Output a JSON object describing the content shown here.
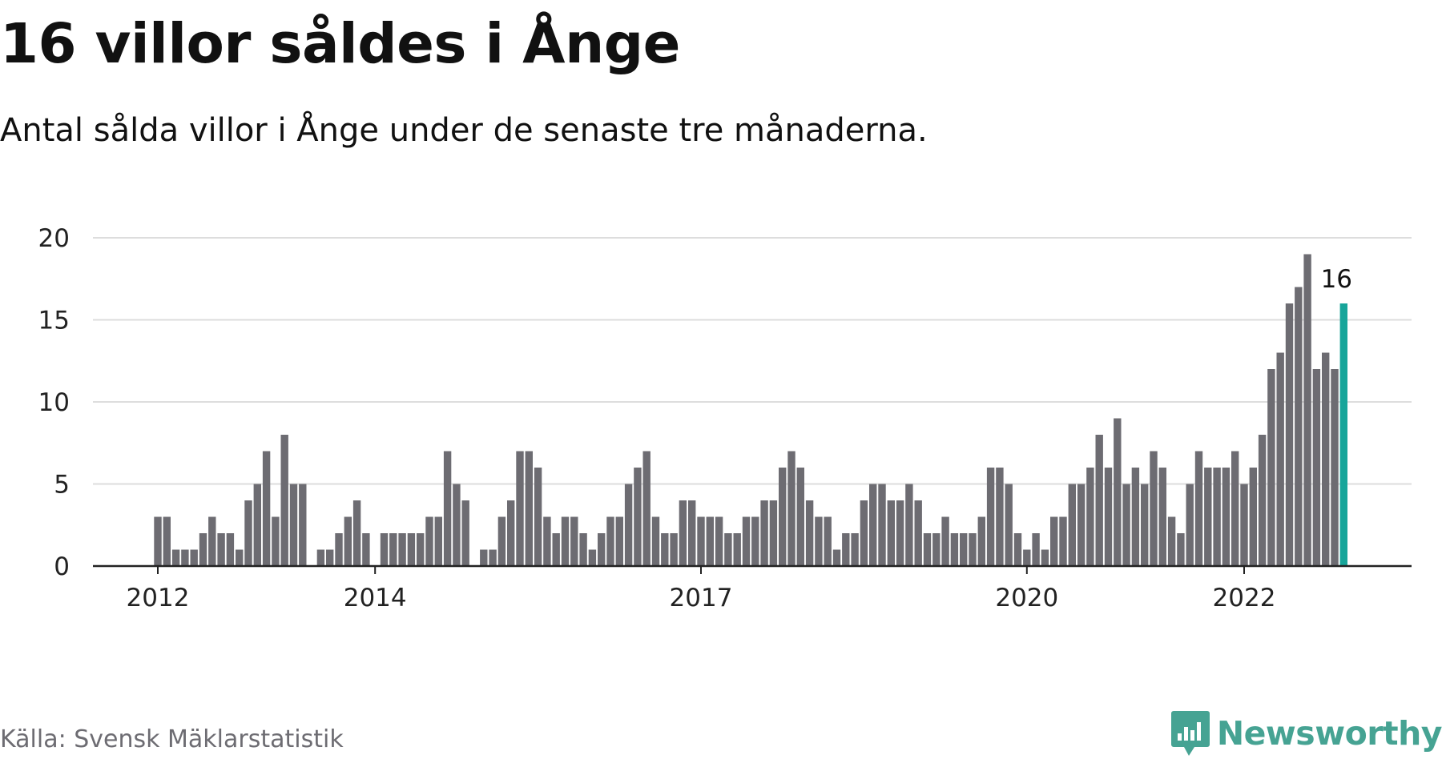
{
  "title": "16 villor såldes i Ånge",
  "subtitle": "Antal sålda villor i Ånge under de senaste tre månaderna.",
  "source": "Källa: Svensk Mäklarstatistik",
  "brand": {
    "name": "Newsworthy",
    "color": "#46a393",
    "icon": "newsworthy-logo-icon"
  },
  "colors": {
    "bar": "#6d6c72",
    "highlight": "#17a59a",
    "grid": "#dddddd",
    "axis": "#222222"
  },
  "chart_data": {
    "type": "bar",
    "title": "16 villor såldes i Ånge",
    "subtitle": "Antal sålda villor i Ånge under de senaste tre månaderna.",
    "xlabel": "",
    "ylabel": "",
    "ylim": [
      0,
      20
    ],
    "yticks": [
      0,
      5,
      10,
      15,
      20
    ],
    "grid": true,
    "legend": "none",
    "x_tick_labels": [
      {
        "label": "2012",
        "index": 0
      },
      {
        "label": "2014",
        "index": 24
      },
      {
        "label": "2017",
        "index": 60
      },
      {
        "label": "2020",
        "index": 96
      },
      {
        "label": "2022",
        "index": 120
      }
    ],
    "highlight_index": 131,
    "highlight_label": "16",
    "values": [
      3,
      3,
      1,
      1,
      1,
      2,
      3,
      2,
      2,
      1,
      4,
      5,
      7,
      3,
      8,
      5,
      5,
      0,
      1,
      1,
      2,
      3,
      4,
      2,
      0,
      2,
      2,
      2,
      2,
      2,
      3,
      3,
      7,
      5,
      4,
      0,
      1,
      1,
      3,
      4,
      7,
      7,
      6,
      3,
      2,
      3,
      3,
      2,
      1,
      2,
      3,
      3,
      5,
      6,
      7,
      3,
      2,
      2,
      4,
      4,
      3,
      3,
      3,
      2,
      2,
      3,
      3,
      4,
      4,
      6,
      7,
      6,
      4,
      3,
      3,
      1,
      2,
      2,
      4,
      5,
      5,
      4,
      4,
      5,
      4,
      2,
      2,
      3,
      2,
      2,
      2,
      3,
      6,
      6,
      5,
      2,
      1,
      2,
      1,
      3,
      3,
      5,
      5,
      6,
      8,
      6,
      9,
      5,
      6,
      5,
      7,
      6,
      3,
      2,
      5,
      7,
      6,
      6,
      6,
      7,
      5,
      6,
      8,
      12,
      13,
      16,
      17,
      19,
      12,
      13,
      12,
      16
    ]
  }
}
